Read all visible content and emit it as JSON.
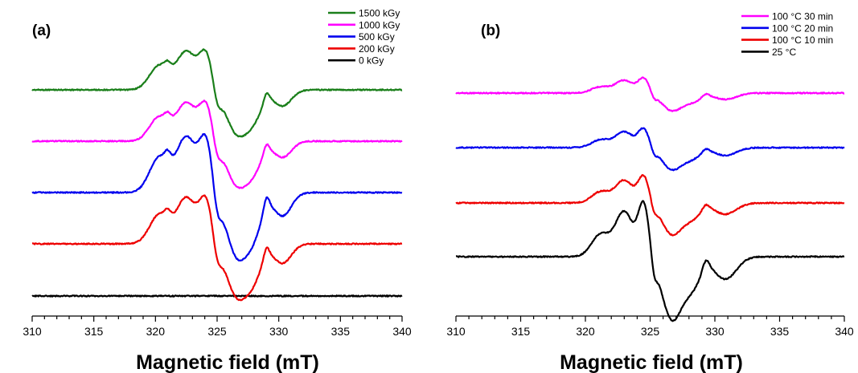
{
  "chart_data": [
    {
      "type": "line",
      "panel_label": "(a)",
      "xlabel": "Magnetic field (mT)",
      "ylabel": "",
      "xlim": [
        310,
        340
      ],
      "xticks": [
        "310",
        "315",
        "320",
        "325",
        "330",
        "335",
        "340"
      ],
      "grid": false,
      "legend_position": "top-right",
      "legend": [
        "1500 kGy",
        "1000 kGy",
        "500 kGy",
        "200 kGy",
        "0 kGy"
      ],
      "series": [
        {
          "name": "1500 kGy",
          "color": "#1a7f1a",
          "offset": 4,
          "scale": 1.0
        },
        {
          "name": "1000 kGy",
          "color": "#ff00ff",
          "offset": 3,
          "scale": 1.0
        },
        {
          "name": "500 kGy",
          "color": "#0000ee",
          "offset": 2,
          "scale": 1.45
        },
        {
          "name": "200 kGy",
          "color": "#ee0000",
          "offset": 1,
          "scale": 1.2
        },
        {
          "name": "0 kGy",
          "color": "#000000",
          "offset": 0,
          "scale": 0.0
        }
      ]
    },
    {
      "type": "line",
      "panel_label": "(b)",
      "xlabel": "Magnetic field (mT)",
      "ylabel": "",
      "xlim": [
        310,
        340
      ],
      "xticks": [
        "310",
        "315",
        "320",
        "325",
        "330",
        "335",
        "340"
      ],
      "grid": false,
      "legend_position": "top-right",
      "legend": [
        "100 °C 30 min",
        "100 °C 20 min",
        "100 °C 10 min",
        "25 °C"
      ],
      "series": [
        {
          "name": "100 °C 30 min",
          "color": "#ff00ff",
          "offset": 3,
          "scale": 0.28
        },
        {
          "name": "100 °C 20 min",
          "color": "#0000ee",
          "offset": 2,
          "scale": 0.35
        },
        {
          "name": "100 °C 10 min",
          "color": "#ee0000",
          "offset": 1,
          "scale": 0.5
        },
        {
          "name": "25 °C",
          "color": "#000000",
          "offset": 0,
          "scale": 1.0
        }
      ]
    }
  ]
}
